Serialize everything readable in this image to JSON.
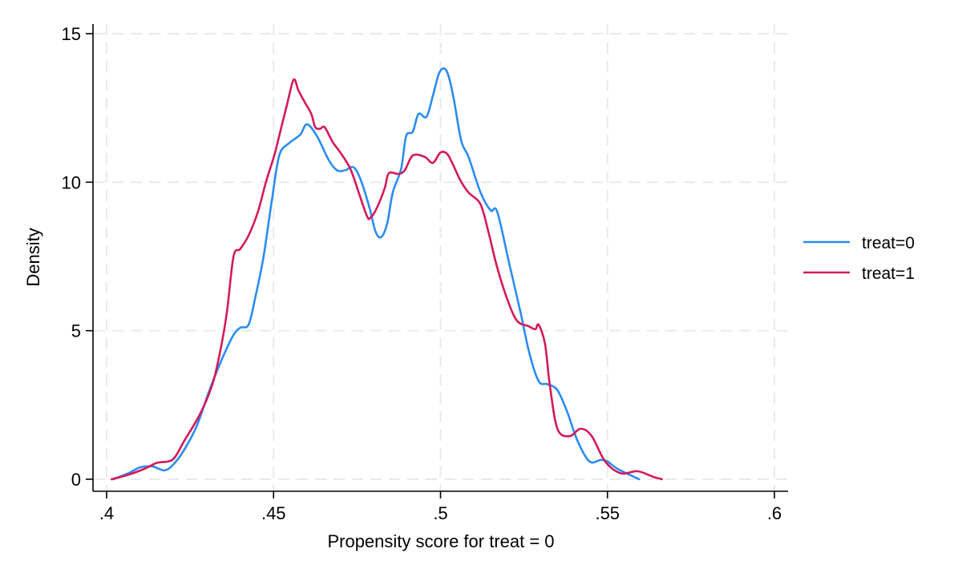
{
  "chart_data": {
    "type": "line",
    "title": "",
    "xlabel": "Propensity score for treat = 0",
    "ylabel": "Density",
    "xlim": [
      0.4,
      0.6
    ],
    "ylim": [
      0,
      15
    ],
    "x_ticks": [
      0.4,
      0.45,
      0.5,
      0.55,
      0.6
    ],
    "x_tick_labels": [
      ".4",
      ".45",
      ".5",
      ".55",
      ".6"
    ],
    "y_ticks": [
      0,
      5,
      10,
      15
    ],
    "y_tick_labels": [
      "0",
      "5",
      "10",
      "15"
    ],
    "grid": true,
    "legend_position": "right",
    "series": [
      {
        "name": "treat=0",
        "color": "#2b8cf0",
        "x": [
          0.402,
          0.4065,
          0.41,
          0.4137,
          0.4173,
          0.42,
          0.4233,
          0.427,
          0.4305,
          0.434,
          0.4377,
          0.44,
          0.4425,
          0.4445,
          0.447,
          0.4495,
          0.4517,
          0.4545,
          0.458,
          0.46,
          0.463,
          0.4665,
          0.469,
          0.4714,
          0.474,
          0.4762,
          0.4787,
          0.4805,
          0.4822,
          0.484,
          0.4857,
          0.4882,
          0.4897,
          0.4917,
          0.4934,
          0.4958,
          0.4977,
          0.4997,
          0.5018,
          0.5038,
          0.5062,
          0.5084,
          0.512,
          0.515,
          0.517,
          0.5206,
          0.524,
          0.5266,
          0.5294,
          0.532,
          0.535,
          0.538,
          0.541,
          0.5446,
          0.548,
          0.55,
          0.553,
          0.5595
        ],
        "y": [
          0,
          0.2,
          0.4,
          0.43,
          0.3,
          0.5,
          1.0,
          1.8,
          2.9,
          3.9,
          4.8,
          5.1,
          5.2,
          6.1,
          7.5,
          9.4,
          10.9,
          11.3,
          11.6,
          11.95,
          11.55,
          10.75,
          10.4,
          10.4,
          10.5,
          10.05,
          9.15,
          8.35,
          8.15,
          8.6,
          9.65,
          10.45,
          11.55,
          11.7,
          12.3,
          12.2,
          12.9,
          13.7,
          13.75,
          12.9,
          11.4,
          10.85,
          9.65,
          9.05,
          9.0,
          7.25,
          5.6,
          4.25,
          3.3,
          3.2,
          3.0,
          2.25,
          1.3,
          0.6,
          0.65,
          0.6,
          0.35,
          0
        ]
      },
      {
        "name": "treat=1",
        "color": "#d21a5c",
        "x": [
          0.4015,
          0.4065,
          0.4113,
          0.415,
          0.4185,
          0.4205,
          0.4233,
          0.428,
          0.4317,
          0.434,
          0.436,
          0.438,
          0.44,
          0.4425,
          0.4453,
          0.4477,
          0.4502,
          0.452,
          0.454,
          0.456,
          0.4574,
          0.4593,
          0.4613,
          0.4625,
          0.464,
          0.4653,
          0.4677,
          0.47,
          0.473,
          0.4755,
          0.478,
          0.479,
          0.4808,
          0.4833,
          0.4845,
          0.4874,
          0.4893,
          0.4917,
          0.4953,
          0.4977,
          0.5,
          0.502,
          0.5037,
          0.506,
          0.5084,
          0.512,
          0.5144,
          0.5168,
          0.5197,
          0.5228,
          0.5264,
          0.5284,
          0.5294,
          0.5313,
          0.5327,
          0.535,
          0.5386,
          0.542,
          0.5453,
          0.5493,
          0.554,
          0.559,
          0.5637,
          0.5663
        ],
        "y": [
          0,
          0.15,
          0.35,
          0.55,
          0.6,
          0.75,
          1.3,
          2.2,
          3.2,
          4.3,
          5.6,
          7.5,
          7.75,
          8.2,
          9.0,
          10.0,
          10.9,
          11.7,
          12.6,
          13.45,
          13.1,
          12.7,
          12.3,
          11.85,
          11.8,
          11.85,
          11.35,
          11.0,
          10.45,
          9.65,
          8.85,
          8.8,
          9.1,
          9.8,
          10.3,
          10.28,
          10.4,
          10.9,
          10.85,
          10.65,
          11.0,
          10.95,
          10.6,
          10.05,
          9.65,
          9.25,
          8.3,
          7.2,
          6.15,
          5.35,
          5.15,
          5.05,
          5.2,
          4.55,
          3.2,
          1.7,
          1.45,
          1.7,
          1.45,
          0.6,
          0.2,
          0.27,
          0.08,
          0
        ]
      }
    ]
  }
}
